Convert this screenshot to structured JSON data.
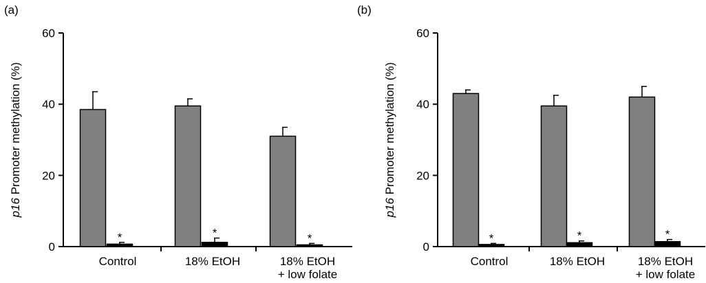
{
  "chart_data": [
    {
      "type": "bar",
      "panel_label": "(a)",
      "ylabel_italic": "p16",
      "ylabel_rest": " Promoter methylation (%)",
      "ylim": [
        0,
        60
      ],
      "yticks": [
        "0",
        "20",
        "40",
        "60"
      ],
      "categories": [
        [
          "Control"
        ],
        [
          "18% EtOH"
        ],
        [
          "18% EtOH",
          "+ low folate"
        ]
      ],
      "series": [
        {
          "values": [
            38.5,
            39.5,
            31
          ],
          "errors": [
            5,
            2,
            2.5
          ],
          "color": "#808080"
        },
        {
          "values": [
            0.7,
            1.2,
            0.5
          ],
          "errors": [
            0.5,
            1.2,
            0.4
          ],
          "color": "#000000",
          "annotation": "*"
        }
      ]
    },
    {
      "type": "bar",
      "panel_label": "(b)",
      "ylabel_italic": "p16",
      "ylabel_rest": " Promoter methylation (%)",
      "ylim": [
        0,
        60
      ],
      "yticks": [
        "0",
        "20",
        "40",
        "60"
      ],
      "categories": [
        [
          "Control"
        ],
        [
          "18% EtOH"
        ],
        [
          "18% EtOH",
          "+ low folate"
        ]
      ],
      "series": [
        {
          "values": [
            43,
            39.5,
            42
          ],
          "errors": [
            1,
            3,
            3
          ],
          "color": "#808080"
        },
        {
          "values": [
            0.6,
            1.1,
            1.4
          ],
          "errors": [
            0.3,
            0.5,
            0.6
          ],
          "color": "#000000",
          "annotation": "*"
        }
      ]
    }
  ]
}
